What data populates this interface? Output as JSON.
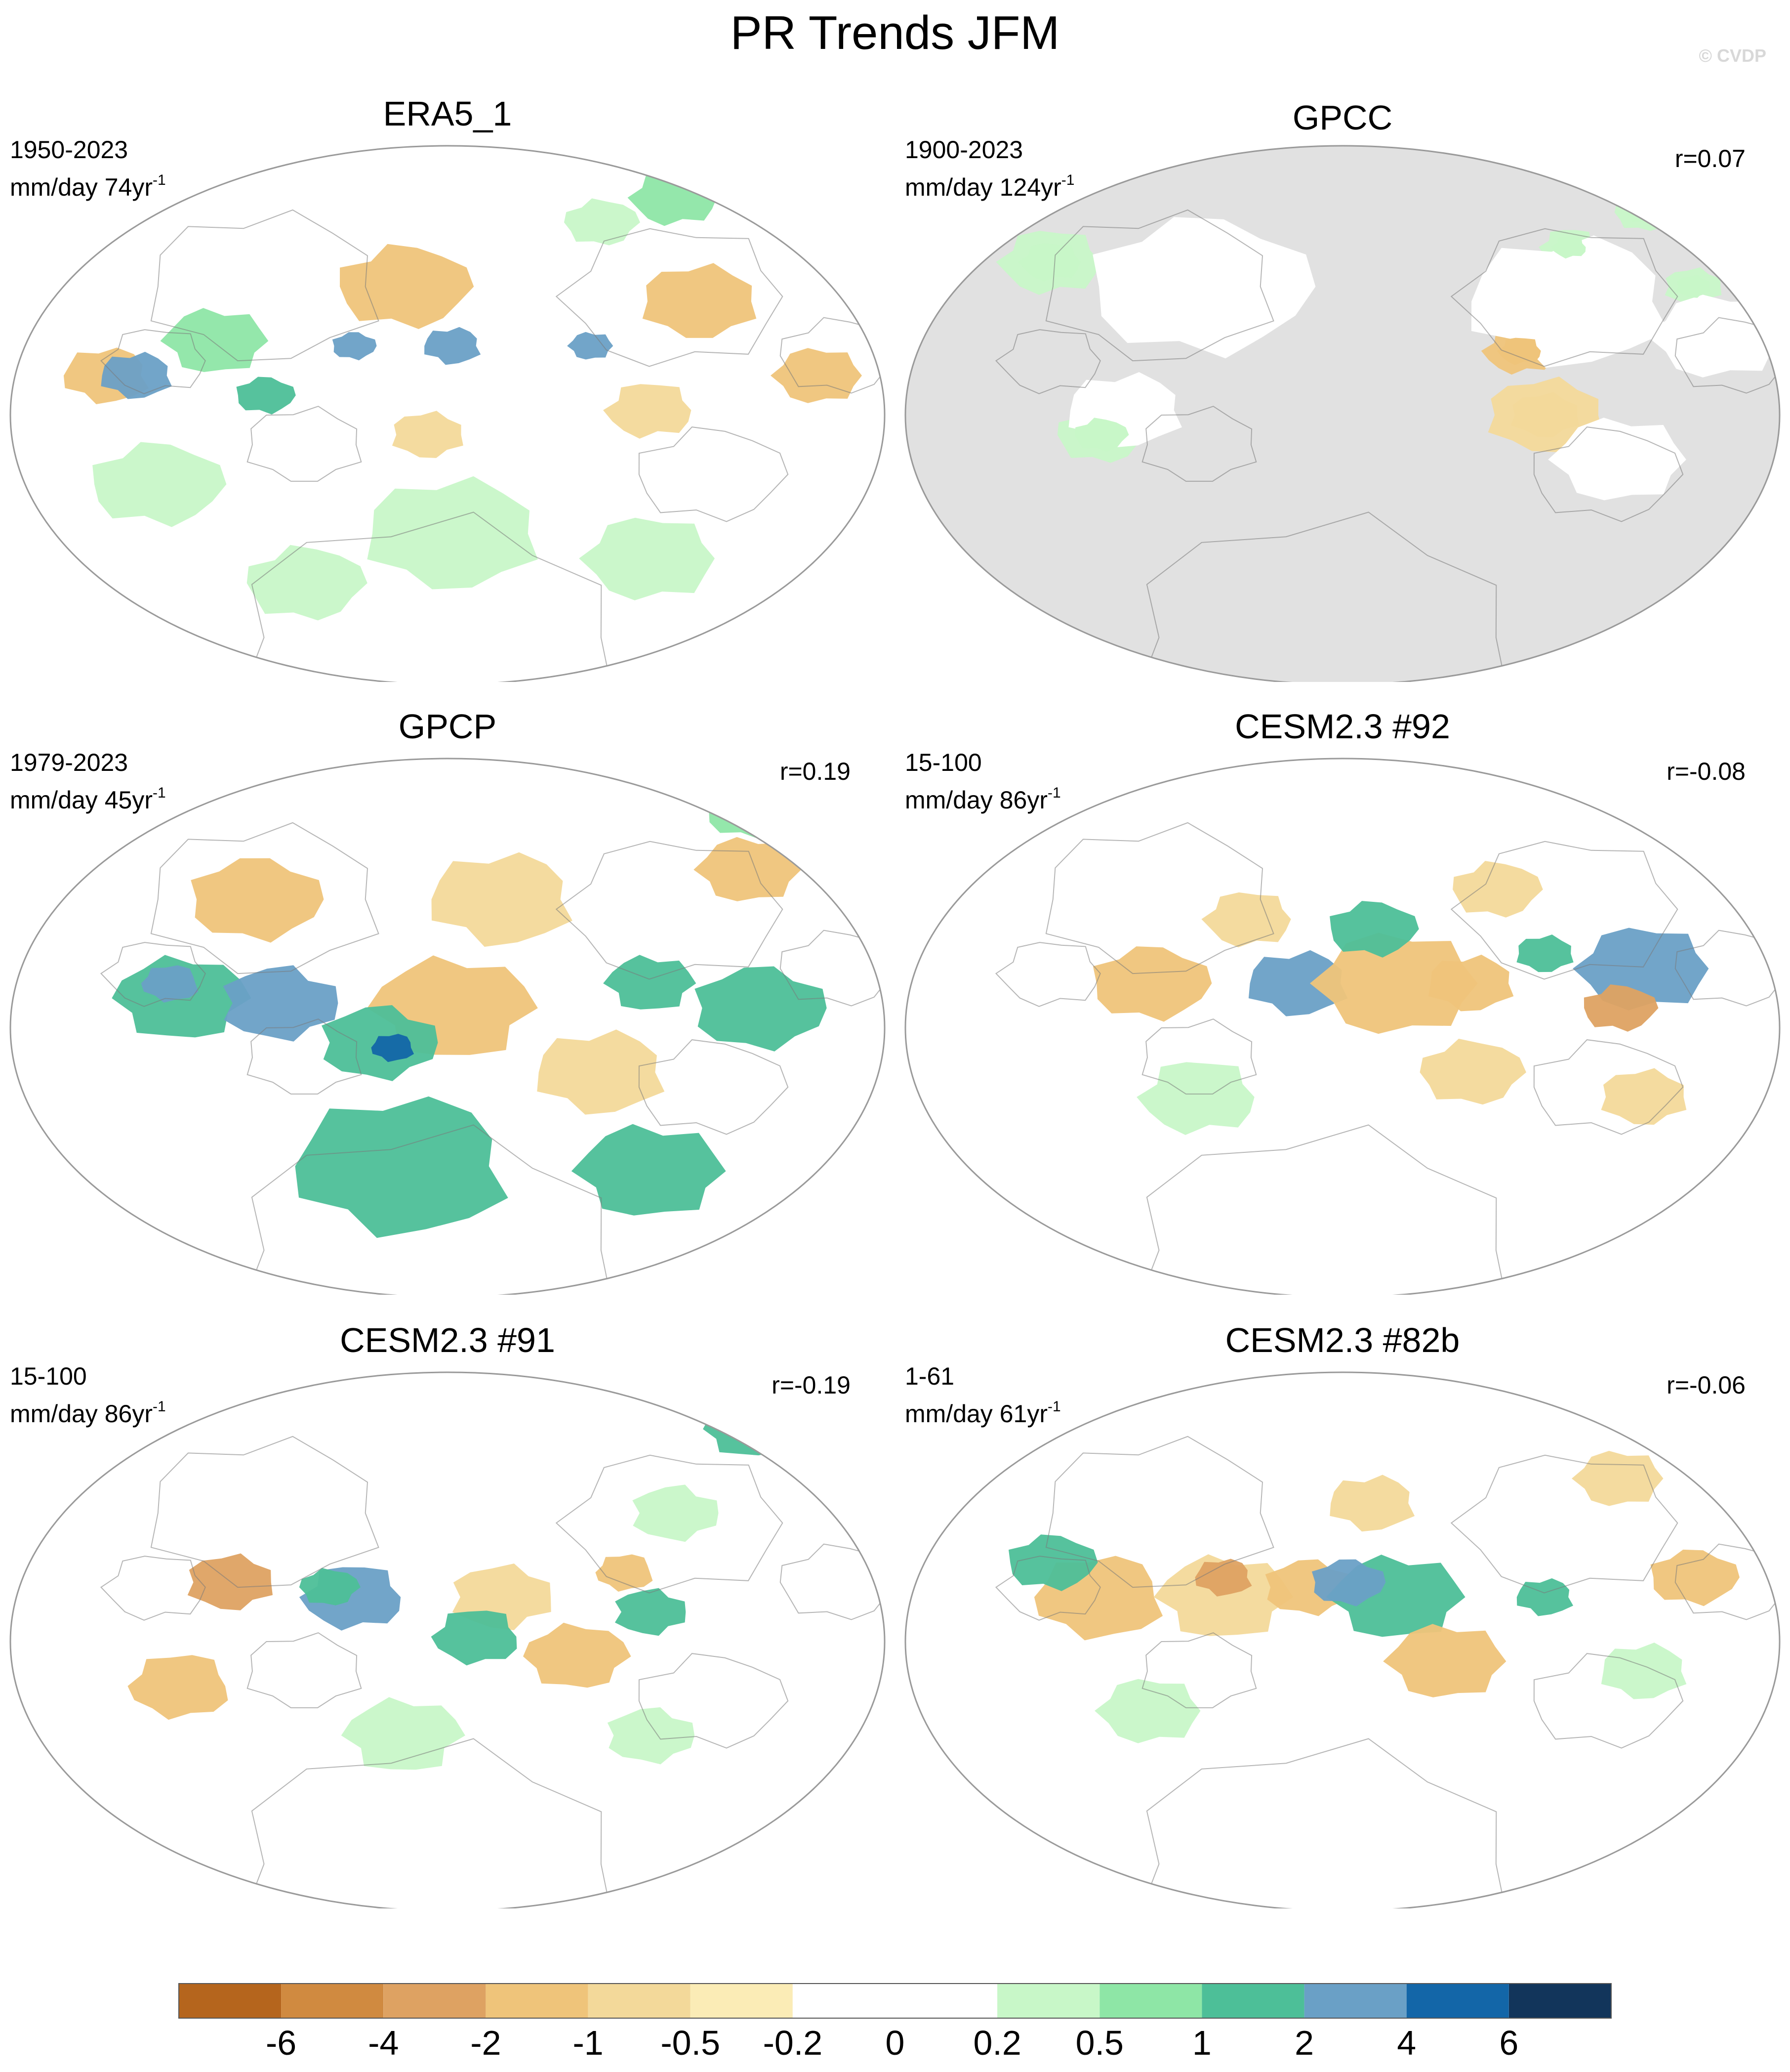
{
  "figure": {
    "title": "PR Trends JFM",
    "watermark": "© CVDP"
  },
  "panels": [
    {
      "title": "ERA5_1",
      "period": "1950-2023",
      "units_prefix": "mm/day 74yr",
      "units_exp": "-1",
      "corr": "",
      "land_masked": false
    },
    {
      "title": "GPCC",
      "period": "1900-2023",
      "units_prefix": "mm/day 124yr",
      "units_exp": "-1",
      "corr": "r=0.07",
      "land_masked": true
    },
    {
      "title": "GPCP",
      "period": "1979-2023",
      "units_prefix": "mm/day 45yr",
      "units_exp": "-1",
      "corr": "r=0.19",
      "land_masked": false
    },
    {
      "title": "CESM2.3 #92",
      "period": "15-100",
      "units_prefix": "mm/day 86yr",
      "units_exp": "-1",
      "corr": "r=-0.08",
      "land_masked": false
    },
    {
      "title": "CESM2.3 #91",
      "period": "15-100",
      "units_prefix": "mm/day 86yr",
      "units_exp": "-1",
      "corr": "r=-0.19",
      "land_masked": false
    },
    {
      "title": "CESM2.3 #82b",
      "period": "1-61",
      "units_prefix": "mm/day 61yr",
      "units_exp": "-1",
      "corr": "r=-0.06",
      "land_masked": false
    }
  ],
  "colorbar": {
    "labels": [
      "-6",
      "-4",
      "-2",
      "-1",
      "-0.5",
      "-0.2",
      "0",
      "0.2",
      "0.5",
      "1",
      "2",
      "4",
      "6"
    ],
    "colors": [
      "#b5651d",
      "#d08a40",
      "#dea262",
      "#efc47a",
      "#f3d99a",
      "#fbecb6",
      "#ffffff",
      "#ffffff",
      "#c8f7c8",
      "#8ee6a6",
      "#4dbf98",
      "#6aa0c6",
      "#1366a8",
      "#12355b"
    ]
  },
  "style": {
    "ocean_gray": "#e1e1e1",
    "coast_color": "#7a7a7a"
  }
}
